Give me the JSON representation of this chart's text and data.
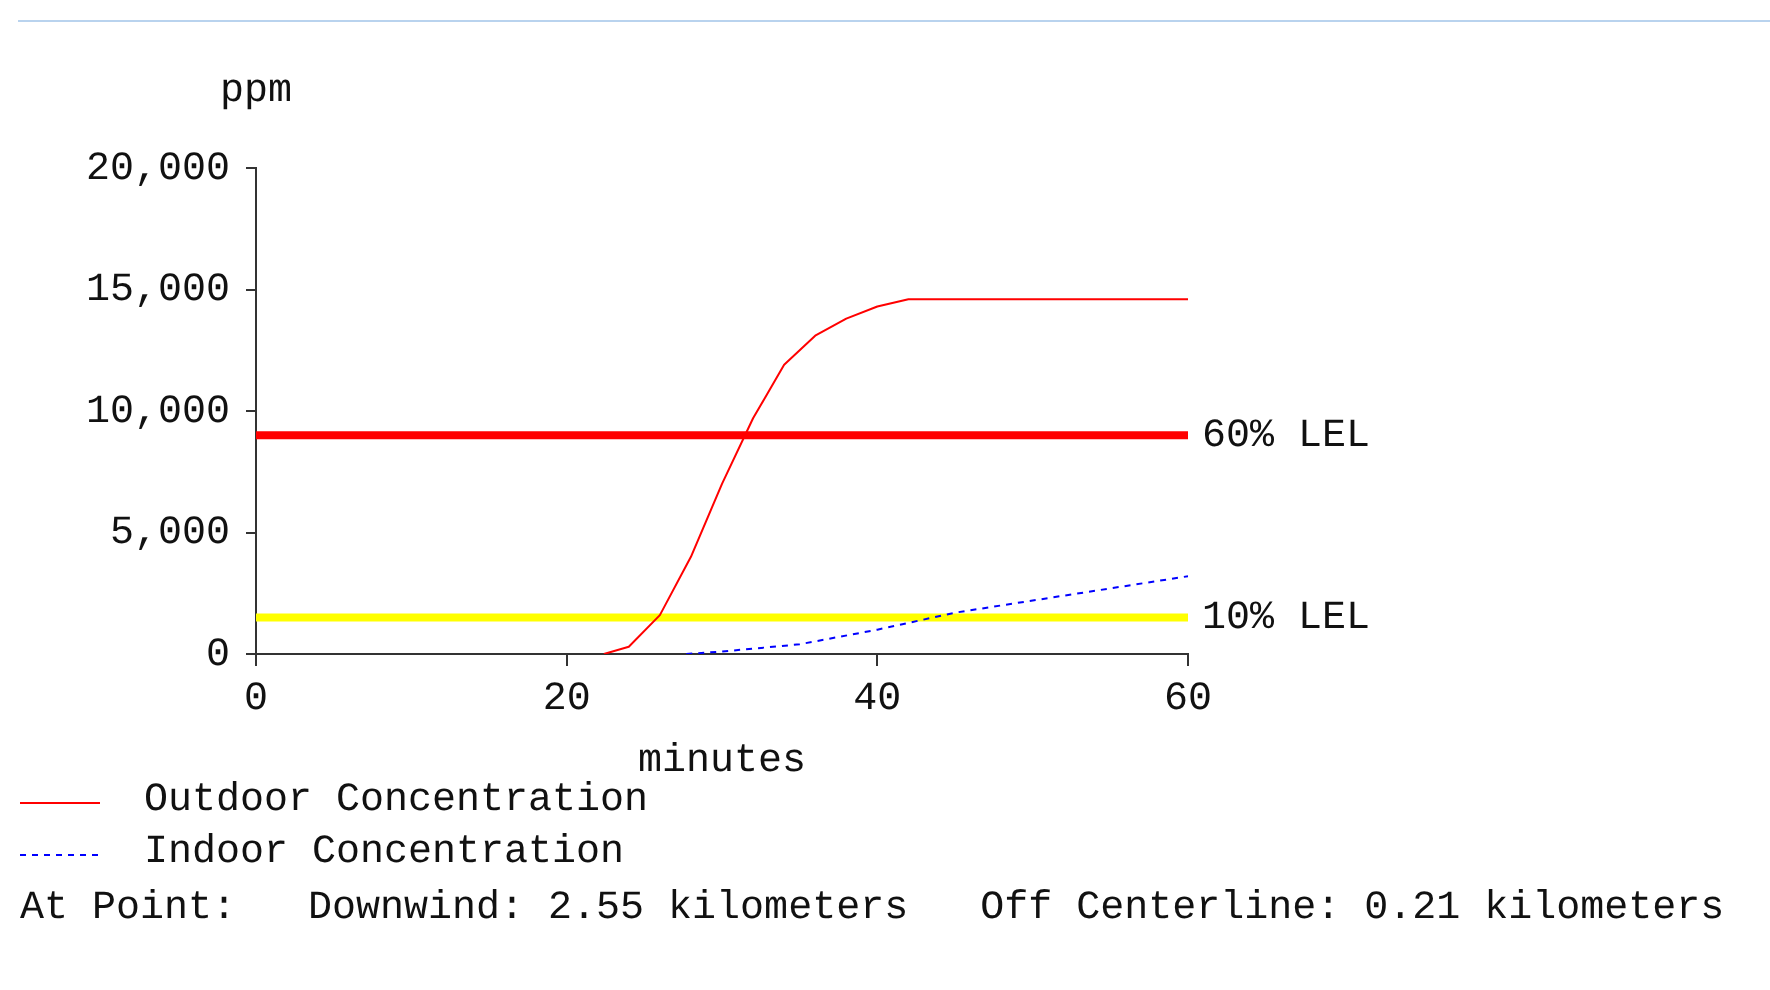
{
  "chart_data": {
    "type": "line",
    "ylabel": "ppm",
    "xlabel": "minutes",
    "xlim": [
      0,
      60
    ],
    "xticks": [
      0,
      20,
      40,
      60
    ],
    "ylim": [
      0,
      20000
    ],
    "yticks": [
      0,
      {
        "value": 5000,
        "label": "5,000"
      },
      {
        "value": 10000,
        "label": "10,000"
      },
      {
        "value": 15000,
        "label": "15,000"
      },
      {
        "value": 20000,
        "label": "20,000"
      }
    ],
    "series": [
      {
        "name": "Outdoor Concentration",
        "color": "#ff0000",
        "line_style": "solid",
        "x": [
          22.4,
          24,
          26,
          28,
          30,
          32,
          34,
          36,
          38,
          40,
          42,
          43,
          60
        ],
        "values": [
          0,
          300,
          1600,
          4000,
          7000,
          9700,
          11900,
          13100,
          13800,
          14300,
          14600,
          14600,
          14600
        ]
      },
      {
        "name": "Indoor Concentration",
        "color": "#0000ff",
        "line_style": "dotted",
        "x": [
          27.7,
          30,
          35,
          40,
          45,
          50,
          55,
          60
        ],
        "values": [
          0,
          100,
          400,
          1000,
          1700,
          2200,
          2700,
          3200
        ]
      }
    ],
    "ref_lines": [
      {
        "axis": "y",
        "value": 9000,
        "label": "60% LEL",
        "color": "#ff0000"
      },
      {
        "axis": "y",
        "value": 1500,
        "label": "10% LEL",
        "color": "#ffff00"
      }
    ],
    "legend": "bottom",
    "grid": false,
    "marker": "none",
    "annotations": [
      "At Point:   Downwind: 2.55 kilometers   Off Centerline: 0.21 kilometers"
    ]
  }
}
